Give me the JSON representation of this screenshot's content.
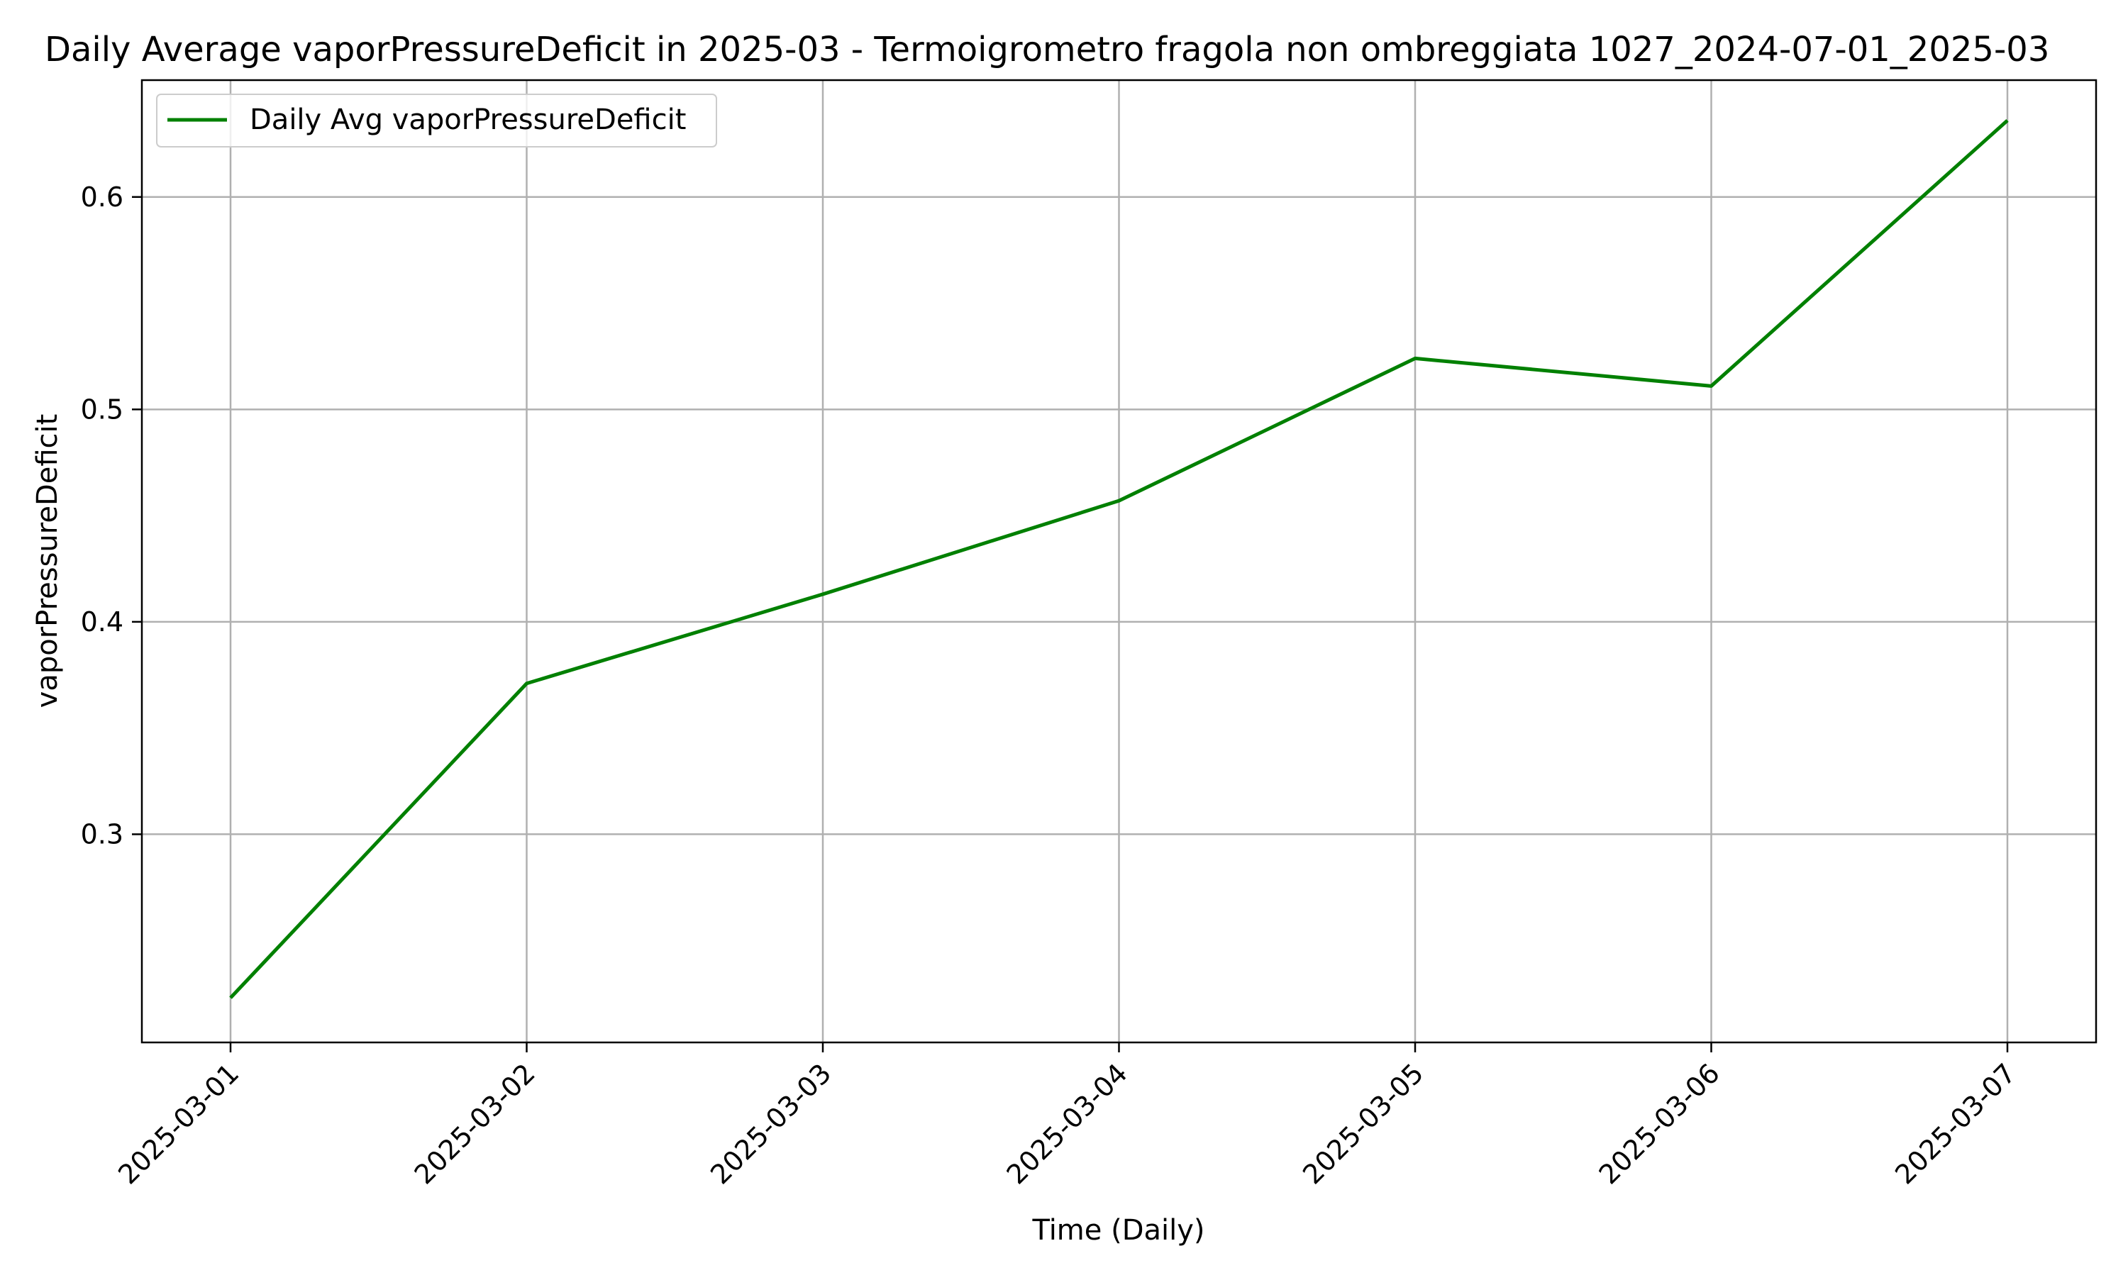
{
  "chart_data": {
    "type": "line",
    "title": "Daily Average vaporPressureDeficit in 2025-03 - Termoigrometro fragola non ombreggiata 1027_2024-07-01_2025-03",
    "xlabel": "Time (Daily)",
    "ylabel": "vaporPressureDeficit",
    "categories": [
      "2025-03-01",
      "2025-03-02",
      "2025-03-03",
      "2025-03-04",
      "2025-03-05",
      "2025-03-06",
      "2025-03-07"
    ],
    "y_ticks": [
      "0.3",
      "0.4",
      "0.5",
      "0.6"
    ],
    "ylim": [
      0.202,
      0.655
    ],
    "grid": true,
    "legend_position": "top-left",
    "series": [
      {
        "name": "Daily Avg vaporPressureDeficit",
        "color": "#008000",
        "values": [
          0.223,
          0.371,
          0.413,
          0.457,
          0.524,
          0.511,
          0.636
        ]
      }
    ]
  }
}
